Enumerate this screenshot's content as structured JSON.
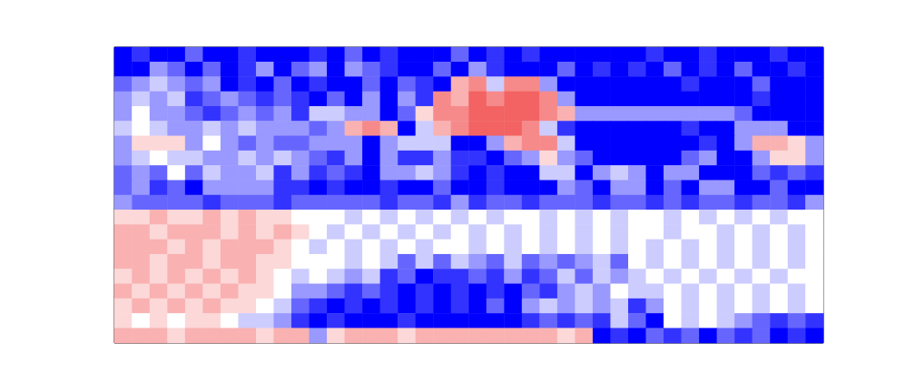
{
  "chart_data": {
    "type": "heatmap",
    "tick_labels": false,
    "grid": false,
    "color_range": [
      0,
      10
    ],
    "cells": [
      [
        0,
        1,
        0,
        0,
        2,
        0,
        0,
        1,
        0,
        0,
        0,
        1,
        0,
        2,
        0,
        1,
        0,
        0,
        0,
        2,
        0,
        1,
        0,
        1,
        0,
        0,
        0,
        0,
        0,
        0,
        1,
        0,
        0,
        1,
        0,
        0,
        0,
        1,
        0,
        0
      ],
      [
        0,
        0,
        3,
        2,
        0,
        2,
        0,
        1,
        3,
        0,
        2,
        3,
        0,
        3,
        2,
        1,
        0,
        0,
        2,
        0,
        3,
        1,
        0,
        0,
        0,
        2,
        0,
        1,
        0,
        1,
        0,
        2,
        0,
        1,
        0,
        2,
        0,
        0,
        1,
        0
      ],
      [
        2,
        3,
        4,
        3,
        2,
        3,
        0,
        1,
        0,
        2,
        0,
        1,
        0,
        0,
        2,
        0,
        2,
        1,
        0,
        7,
        8,
        4,
        8,
        8,
        3,
        0,
        0,
        0,
        0,
        0,
        0,
        0,
        1,
        0,
        0,
        0,
        2,
        0,
        0,
        0
      ],
      [
        3,
        4,
        3,
        4,
        1,
        2,
        3,
        2,
        1,
        2,
        1,
        0,
        2,
        0,
        3,
        0,
        3,
        1,
        8,
        7,
        9,
        8,
        9,
        9,
        8,
        3,
        0,
        0,
        0,
        0,
        0,
        0,
        0,
        0,
        0,
        0,
        1,
        0,
        0,
        0
      ],
      [
        3,
        5,
        3,
        3,
        2,
        1,
        2,
        3,
        2,
        3,
        1,
        4,
        4,
        3,
        3,
        0,
        2,
        6,
        8,
        8,
        9,
        9,
        9,
        9,
        8,
        7,
        3,
        3,
        3,
        3,
        3,
        3,
        3,
        3,
        3,
        2,
        0,
        0,
        0,
        0
      ],
      [
        4,
        5,
        4,
        3,
        3,
        4,
        3,
        4,
        3,
        3,
        3,
        2,
        3,
        7,
        8,
        7,
        0,
        4,
        7,
        8,
        9,
        9,
        9,
        8,
        4,
        1,
        0,
        0,
        0,
        0,
        0,
        0,
        1,
        0,
        0,
        3,
        3,
        3,
        0,
        0
      ],
      [
        3,
        6,
        6,
        6,
        3,
        5,
        3,
        2,
        3,
        2,
        2,
        3,
        3,
        3,
        0,
        3,
        4,
        4,
        4,
        0,
        0,
        3,
        7,
        8,
        8,
        4,
        0,
        0,
        0,
        0,
        0,
        0,
        0,
        1,
        0,
        3,
        7,
        7,
        6,
        3
      ],
      [
        3,
        4,
        5,
        4,
        4,
        3,
        3,
        4,
        3,
        4,
        3,
        2,
        1,
        3,
        0,
        3,
        1,
        1,
        3,
        1,
        1,
        0,
        2,
        3,
        6,
        3,
        2,
        0,
        0,
        0,
        0,
        0,
        2,
        3,
        0,
        0,
        3,
        6,
        6,
        3
      ],
      [
        2,
        3,
        2,
        5,
        2,
        4,
        3,
        3,
        4,
        1,
        3,
        1,
        2,
        1,
        0,
        3,
        3,
        4,
        3,
        1,
        0,
        1,
        0,
        0,
        4,
        4,
        0,
        3,
        4,
        3,
        0,
        3,
        3,
        0,
        0,
        0,
        2,
        1,
        2,
        1
      ],
      [
        2,
        3,
        1,
        2,
        0,
        3,
        3,
        3,
        3,
        1,
        1,
        0,
        1,
        0,
        0,
        1,
        0,
        0,
        2,
        0,
        0,
        1,
        0,
        0,
        0,
        3,
        2,
        0,
        3,
        3,
        0,
        2,
        0,
        3,
        3,
        0,
        0,
        2,
        0,
        0
      ],
      [
        3,
        2,
        2,
        2,
        2,
        1,
        2,
        2,
        2,
        1,
        2,
        2,
        2,
        2,
        2,
        1,
        2,
        2,
        1,
        3,
        1,
        2,
        2,
        1,
        2,
        2,
        2,
        1,
        2,
        2,
        1,
        2,
        1,
        2,
        2,
        1,
        2,
        2,
        1,
        3
      ],
      [
        6,
        6,
        7,
        6,
        6,
        7,
        6,
        7,
        6,
        6,
        5,
        5,
        5,
        4,
        5,
        4,
        5,
        4,
        5,
        4,
        5,
        4,
        5,
        5,
        4,
        5,
        4,
        5,
        4,
        5,
        5,
        4,
        5,
        4,
        5,
        4,
        5,
        4,
        5,
        5
      ],
      [
        7,
        7,
        6,
        7,
        7,
        7,
        6,
        7,
        6,
        7,
        6,
        5,
        4,
        5,
        4,
        5,
        4,
        5,
        4,
        5,
        4,
        5,
        4,
        5,
        4,
        5,
        4,
        5,
        4,
        5,
        5,
        4,
        5,
        5,
        4,
        5,
        4,
        5,
        4,
        5
      ],
      [
        7,
        7,
        7,
        6,
        7,
        6,
        7,
        7,
        7,
        6,
        5,
        4,
        5,
        4,
        5,
        4,
        5,
        4,
        5,
        5,
        4,
        5,
        4,
        5,
        4,
        5,
        4,
        5,
        4,
        5,
        4,
        5,
        4,
        5,
        4,
        5,
        4,
        5,
        4,
        5
      ],
      [
        7,
        7,
        6,
        7,
        7,
        6,
        7,
        7,
        6,
        6,
        5,
        5,
        5,
        4,
        5,
        4,
        2,
        4,
        2,
        4,
        3,
        2,
        4,
        2,
        3,
        2,
        3,
        4,
        2,
        5,
        4,
        5,
        4,
        5,
        4,
        5,
        4,
        5,
        4,
        5
      ],
      [
        6,
        7,
        6,
        7,
        6,
        7,
        6,
        7,
        6,
        5,
        4,
        5,
        4,
        3,
        4,
        1,
        2,
        0,
        1,
        1,
        2,
        1,
        3,
        1,
        2,
        4,
        2,
        4,
        3,
        4,
        5,
        4,
        5,
        4,
        5,
        4,
        5,
        4,
        5,
        5
      ],
      [
        7,
        6,
        7,
        6,
        7,
        6,
        7,
        6,
        6,
        5,
        3,
        3,
        2,
        1,
        2,
        1,
        0,
        1,
        0,
        1,
        0,
        1,
        0,
        2,
        1,
        3,
        4,
        3,
        5,
        4,
        4,
        5,
        4,
        5,
        4,
        5,
        4,
        5,
        4,
        5
      ],
      [
        6,
        7,
        6,
        7,
        6,
        7,
        6,
        6,
        5,
        4,
        2,
        1,
        0,
        1,
        0,
        1,
        0,
        1,
        0,
        1,
        0,
        2,
        0,
        3,
        4,
        3,
        4,
        3,
        4,
        1,
        3,
        5,
        4,
        5,
        4,
        5,
        4,
        5,
        4,
        5
      ],
      [
        6,
        5,
        6,
        5,
        6,
        6,
        5,
        4,
        4,
        3,
        1,
        0,
        1,
        0,
        0,
        0,
        1,
        0,
        0,
        0,
        0,
        0,
        0,
        1,
        2,
        1,
        2,
        1,
        4,
        2,
        0,
        5,
        4,
        5,
        4,
        3,
        2,
        1,
        2,
        1
      ],
      [
        7,
        7,
        7,
        6,
        7,
        7,
        7,
        7,
        6,
        7,
        7,
        3,
        6,
        7,
        7,
        7,
        6,
        7,
        7,
        7,
        7,
        7,
        7,
        7,
        7,
        6,
        7,
        0,
        1,
        0,
        2,
        1,
        2,
        0,
        2,
        1,
        2,
        0,
        1,
        0
      ]
    ]
  }
}
